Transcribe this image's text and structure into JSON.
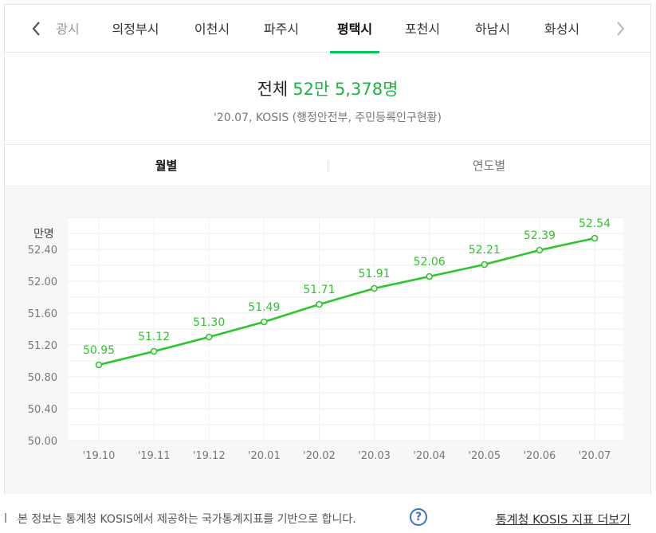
{
  "tabs": {
    "items": [
      {
        "label": "광시",
        "state": "partial"
      },
      {
        "label": "의정부시",
        "state": "normal"
      },
      {
        "label": "이천시",
        "state": "normal"
      },
      {
        "label": "파주시",
        "state": "normal"
      },
      {
        "label": "평택시",
        "state": "active"
      },
      {
        "label": "포천시",
        "state": "normal"
      },
      {
        "label": "하남시",
        "state": "normal"
      },
      {
        "label": "화성시",
        "state": "normal"
      }
    ],
    "prev_icon": "chevron-left-icon",
    "next_icon": "chevron-right-icon"
  },
  "summary": {
    "label": "전체",
    "value": "52만 5,378명",
    "source": "'20.07, KOSIS (행정안전부, 주민등록인구현황)"
  },
  "period_tabs": {
    "monthly": "월별",
    "yearly": "연도별",
    "active": "monthly"
  },
  "colors": {
    "accent": "#03c75a",
    "line": "#2ec52c",
    "value_label": "#2ec52c",
    "help": "#3a73c2"
  },
  "chart_data": {
    "type": "line",
    "unit_label": "만명",
    "categories": [
      "'19.10",
      "'19.11",
      "'19.12",
      "'20.01",
      "'20.02",
      "'20.03",
      "'20.04",
      "'20.05",
      "'20.06",
      "'20.07"
    ],
    "values": [
      50.95,
      51.12,
      51.3,
      51.49,
      51.71,
      51.91,
      52.06,
      52.21,
      52.39,
      52.54
    ],
    "value_labels": [
      "50.95",
      "51.12",
      "51.30",
      "51.49",
      "51.71",
      "51.91",
      "52.06",
      "52.21",
      "52.39",
      "52.54"
    ],
    "yticks": [
      "50.00",
      "50.40",
      "50.80",
      "51.20",
      "51.60",
      "52.00",
      "52.40"
    ],
    "ylim": [
      50.0,
      52.8
    ],
    "grid": true
  },
  "footer": {
    "note": "본 정보는 통계청 KOSIS에서 제공하는 국가통계지표를 기반으로 합니다.",
    "help_label": "?",
    "link": "통계청 KOSIS 지표 더보기"
  }
}
